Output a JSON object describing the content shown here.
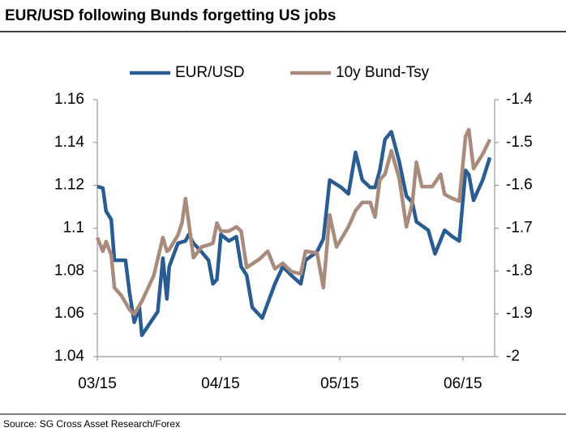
{
  "chart_data": {
    "type": "line",
    "title": "EUR/USD following Bunds forgetting US jobs",
    "source": "Source: SG Cross Asset Research/Forex",
    "xlim": [
      0,
      100
    ],
    "xticks": [
      {
        "value": 0,
        "label": "03/15"
      },
      {
        "value": 31,
        "label": "04/15"
      },
      {
        "value": 61,
        "label": "05/15"
      },
      {
        "value": 92,
        "label": "06/15"
      }
    ],
    "ylim": [
      1.04,
      1.16
    ],
    "yticks": [
      1.04,
      1.06,
      1.08,
      1.1,
      1.12,
      1.14,
      1.16
    ],
    "y2lim": [
      -2,
      -1.4
    ],
    "y2ticks": [
      -2,
      -1.9,
      -1.8,
      -1.7,
      -1.6,
      -1.5,
      -1.4
    ],
    "grid": false,
    "legend": "top",
    "series": [
      {
        "name": "EUR/USD",
        "color": "#2b5c91",
        "x": [
          0,
          1.4,
          2.2,
          3.5,
          4.3,
          7.1,
          8.1,
          9.3,
          10.6,
          11.2,
          15.2,
          16.5,
          17.5,
          18.1,
          20.3,
          22.2,
          23.0,
          24.2,
          26.2,
          28.0,
          29.1,
          30.1,
          31.1,
          33.1,
          35.0,
          36.2,
          37.6,
          39.0,
          41.5,
          42.9,
          44.7,
          46.7,
          48.8,
          51.2,
          52.4,
          55.3,
          56.9,
          58.5,
          61.4,
          63.2,
          65.0,
          66.7,
          68.7,
          69.9,
          71.1,
          72.4,
          74.0,
          76.0,
          77.8,
          79.3,
          80.3,
          83.3,
          85.0,
          87.4,
          89.4,
          91.1,
          92.7,
          93.5,
          94.7,
          97.0,
          98.8
        ],
        "values": [
          1.1195,
          1.1187,
          1.108,
          1.104,
          1.085,
          1.085,
          1.07,
          1.056,
          1.063,
          1.05,
          1.061,
          1.086,
          1.067,
          1.082,
          1.093,
          1.094,
          1.097,
          1.093,
          1.089,
          1.085,
          1.074,
          1.076,
          1.097,
          1.094,
          1.096,
          1.082,
          1.078,
          1.063,
          1.058,
          1.065,
          1.074,
          1.082,
          1.078,
          1.074,
          1.085,
          1.089,
          1.095,
          1.1225,
          1.119,
          1.116,
          1.1354,
          1.1225,
          1.119,
          1.119,
          1.127,
          1.1415,
          1.145,
          1.131,
          1.115,
          1.112,
          1.103,
          1.099,
          1.088,
          1.099,
          1.096,
          1.094,
          1.127,
          1.125,
          1.113,
          1.1225,
          1.133
        ]
      },
      {
        "name": "10y Bund-Tsy",
        "color": "#a88b7d",
        "axis": "y2",
        "x": [
          0,
          1.4,
          2.2,
          3.5,
          4.3,
          6.1,
          8.1,
          9.3,
          11.2,
          14.2,
          16.5,
          17.5,
          18.1,
          20.3,
          21.3,
          22.2,
          24.2,
          26.2,
          28.0,
          29.1,
          30.1,
          31.1,
          33.1,
          35.0,
          36.2,
          37.6,
          40.7,
          42.9,
          44.7,
          46.7,
          48.8,
          51.2,
          52.4,
          55.3,
          56.9,
          58.5,
          60.2,
          63.2,
          65.0,
          66.7,
          68.7,
          69.9,
          71.1,
          72.4,
          74.0,
          76.0,
          77.8,
          79.3,
          80.3,
          81.7,
          84.3,
          86.4,
          87.4,
          89.4,
          91.1,
          92.7,
          93.5,
          94.7,
          97.0,
          98.8
        ],
        "values": [
          -1.722,
          -1.754,
          -1.731,
          -1.763,
          -1.839,
          -1.858,
          -1.89,
          -1.901,
          -1.871,
          -1.811,
          -1.722,
          -1.754,
          -1.75,
          -1.716,
          -1.688,
          -1.631,
          -1.769,
          -1.744,
          -1.739,
          -1.735,
          -1.688,
          -1.707,
          -1.707,
          -1.697,
          -1.707,
          -1.792,
          -1.773,
          -1.754,
          -1.795,
          -1.782,
          -1.801,
          -1.807,
          -1.754,
          -1.758,
          -1.839,
          -1.669,
          -1.744,
          -1.697,
          -1.659,
          -1.64,
          -1.64,
          -1.674,
          -1.587,
          -1.574,
          -1.519,
          -1.584,
          -1.697,
          -1.64,
          -1.546,
          -1.603,
          -1.603,
          -1.574,
          -1.621,
          -1.631,
          -1.637,
          -1.485,
          -1.47,
          -1.561,
          -1.527,
          -1.493
        ]
      }
    ]
  }
}
